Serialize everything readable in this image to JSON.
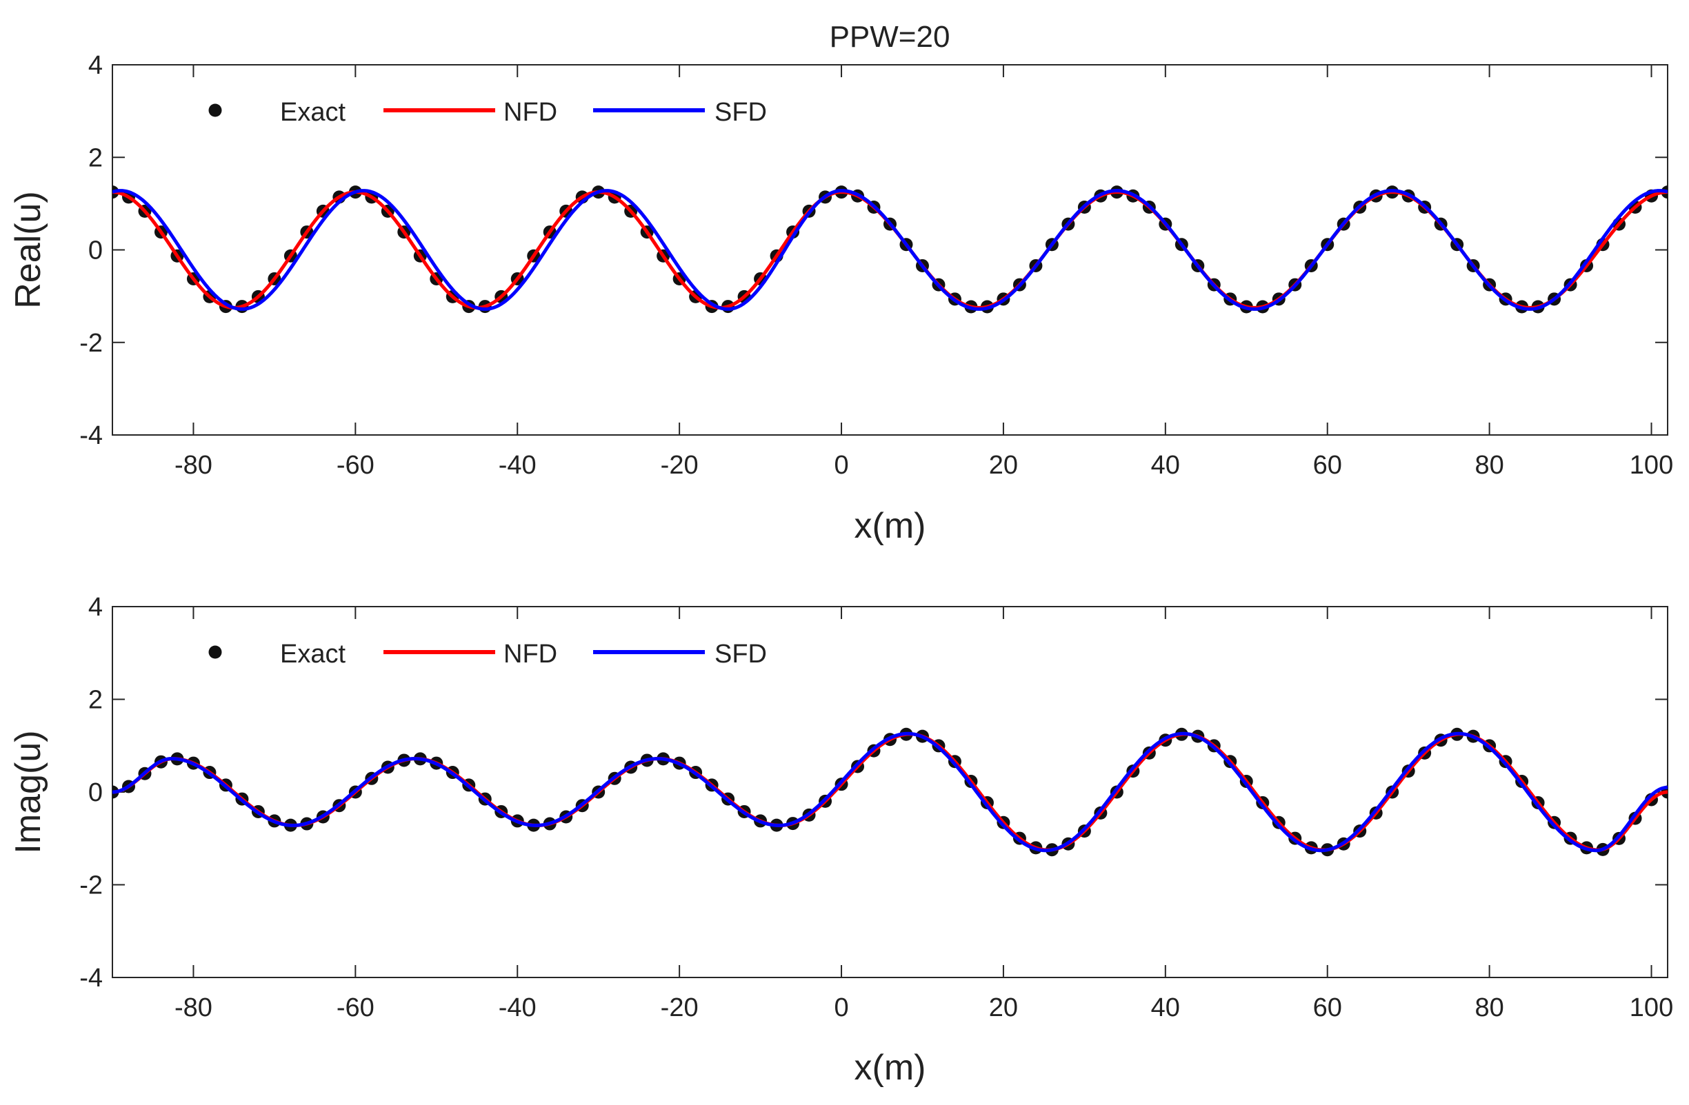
{
  "title": "PPW=20",
  "legend": {
    "exact": "Exact",
    "nfd": "NFD",
    "sfd": "SFD"
  },
  "colors": {
    "exact": "#111111",
    "nfd": "#ff0000",
    "sfd": "#0000ff",
    "axis": "#262626"
  },
  "chart_data": [
    {
      "type": "line",
      "name": "real-part",
      "xlabel": "x(m)",
      "ylabel": "Real(u)",
      "xlim": [
        -90,
        102
      ],
      "ylim": [
        -4,
        4
      ],
      "xticks": [
        -80,
        -60,
        -40,
        -20,
        0,
        20,
        40,
        60,
        80,
        100
      ],
      "yticks": [
        -4,
        -2,
        0,
        2,
        4
      ],
      "legend_position": "top-left",
      "series": [
        {
          "name": "Exact",
          "style": "markers",
          "amplitude": 1.25,
          "x_start": -90,
          "x_end": 102,
          "marker_spacing": 2,
          "crests_x": [
            -60,
            -30,
            0,
            34,
            68,
            102
          ],
          "troughs_x": [
            -75,
            -45,
            -15,
            17,
            51,
            85
          ]
        },
        {
          "name": "NFD",
          "style": "line",
          "amplitude": 1.25,
          "crests_x": [
            -60,
            -30,
            0,
            34,
            68,
            102
          ],
          "troughs_x": [
            -75,
            -45,
            -15,
            17,
            51,
            85
          ]
        },
        {
          "name": "SFD",
          "style": "line",
          "amplitude": 1.28,
          "crests_x": [
            -89,
            -59,
            -29,
            0,
            34,
            68,
            101
          ],
          "troughs_x": [
            -74,
            -44,
            -14,
            17,
            51,
            85
          ]
        }
      ]
    },
    {
      "type": "line",
      "name": "imag-part",
      "xlabel": "x(m)",
      "ylabel": "Imag(u)",
      "xlim": [
        -90,
        102
      ],
      "ylim": [
        -4,
        4
      ],
      "xticks": [
        -80,
        -60,
        -40,
        -20,
        0,
        20,
        40,
        60,
        80,
        100
      ],
      "yticks": [
        -4,
        -2,
        0,
        2,
        4
      ],
      "legend_position": "top-left",
      "series": [
        {
          "name": "Exact",
          "style": "markers",
          "marker_spacing": 2,
          "points": [
            [
              -90,
              0
            ],
            [
              -82.5,
              0.72
            ],
            [
              -67.5,
              -0.72
            ],
            [
              -52.5,
              0.72
            ],
            [
              -37.5,
              -0.72
            ],
            [
              -22.5,
              0.72
            ],
            [
              -7.5,
              -0.72
            ],
            [
              8.5,
              1.25
            ],
            [
              25.5,
              -1.25
            ],
            [
              42.5,
              1.25
            ],
            [
              59.5,
              -1.25
            ],
            [
              76.5,
              1.25
            ],
            [
              93.5,
              -1.25
            ],
            [
              102,
              0
            ]
          ]
        },
        {
          "name": "NFD",
          "style": "line",
          "points": [
            [
              -90,
              0
            ],
            [
              -82.5,
              0.72
            ],
            [
              -67.5,
              -0.72
            ],
            [
              -52.5,
              0.72
            ],
            [
              -37.5,
              -0.72
            ],
            [
              -22.5,
              0.72
            ],
            [
              -7.5,
              -0.72
            ],
            [
              8.5,
              1.25
            ],
            [
              25.5,
              -1.25
            ],
            [
              42.5,
              1.25
            ],
            [
              59.5,
              -1.25
            ],
            [
              76.5,
              1.25
            ],
            [
              93.5,
              -1.25
            ],
            [
              102,
              0
            ]
          ]
        },
        {
          "name": "SFD",
          "style": "line",
          "points": [
            [
              -90,
              0
            ],
            [
              -82.7,
              0.72
            ],
            [
              -67.7,
              -0.72
            ],
            [
              -52.7,
              0.72
            ],
            [
              -37.7,
              -0.72
            ],
            [
              -22.7,
              0.72
            ],
            [
              -7.7,
              -0.72
            ],
            [
              8.2,
              1.26
            ],
            [
              25.2,
              -1.26
            ],
            [
              42.2,
              1.26
            ],
            [
              59.2,
              -1.26
            ],
            [
              76.2,
              1.26
            ],
            [
              93.2,
              -1.26
            ],
            [
              102,
              0.1
            ]
          ]
        }
      ]
    }
  ]
}
